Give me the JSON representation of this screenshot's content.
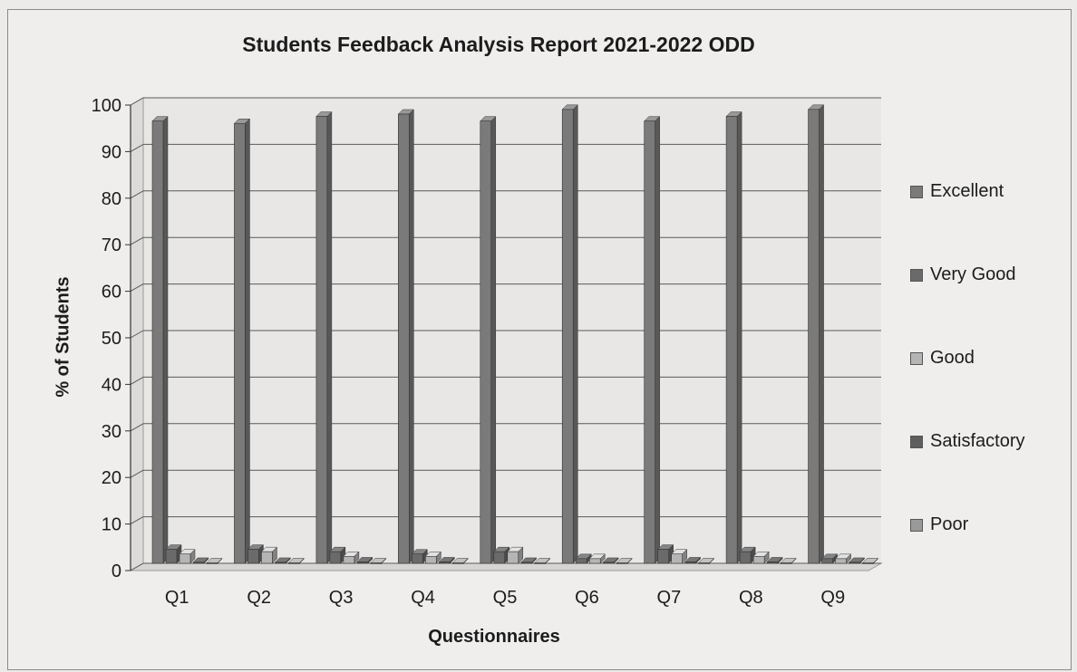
{
  "chart_data": {
    "type": "bar",
    "title": "Students Feedback Analysis Report 2021-2022 ODD",
    "xlabel": "Questionnaires",
    "ylabel": "% of Students",
    "ylim": [
      0,
      100
    ],
    "yticks": [
      0,
      10,
      20,
      30,
      40,
      50,
      60,
      70,
      80,
      90,
      100
    ],
    "grid": true,
    "legend_position": "right",
    "categories": [
      "Q1",
      "Q2",
      "Q3",
      "Q4",
      "Q5",
      "Q6",
      "Q7",
      "Q8",
      "Q9"
    ],
    "series": [
      {
        "name": "Excellent",
        "color": "#7a7a7a",
        "values": [
          95,
          94.5,
          96,
          96.5,
          95,
          97.5,
          95,
          96,
          97.5
        ]
      },
      {
        "name": "Very Good",
        "color": "#6a6a6a",
        "values": [
          3,
          3,
          2.5,
          2,
          2.5,
          1,
          3,
          2.5,
          1
        ]
      },
      {
        "name": "Good",
        "color": "#b5b5b5",
        "values": [
          2,
          2.5,
          1.5,
          1.5,
          2.5,
          1,
          2,
          1.5,
          1
        ]
      },
      {
        "name": "Satisfactory",
        "color": "#5e5e5e",
        "values": [
          0.2,
          0.2,
          0.3,
          0.3,
          0.2,
          0.2,
          0.3,
          0.3,
          0.2
        ]
      },
      {
        "name": "Poor",
        "color": "#9a9a9a",
        "values": [
          0.1,
          0.1,
          0.1,
          0.1,
          0.1,
          0.1,
          0.1,
          0.1,
          0.1
        ]
      }
    ]
  }
}
